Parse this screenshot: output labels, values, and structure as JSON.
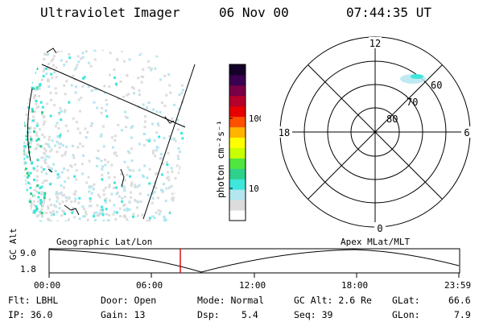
{
  "header": {
    "instrument": "Ultraviolet Imager",
    "date": "06 Nov 00",
    "time": "07:44:35 UT"
  },
  "colorbar": {
    "unit_label": "photon cm⁻²s⁻¹",
    "tick_100": "100",
    "tick_10": "10",
    "colors": [
      "#ffffff",
      "#dcdcdc",
      "#b4e6f0",
      "#3ee6dc",
      "#2fd08a",
      "#50e640",
      "#c8ff00",
      "#ffff00",
      "#ffb400",
      "#ff5000",
      "#e60000",
      "#b4002a",
      "#780046",
      "#3c0050",
      "#140028"
    ]
  },
  "polar": {
    "mlt_12": "12",
    "mlt_18": "18",
    "mlt_6": "6",
    "mlt_0": "0",
    "lat_60": "60",
    "lat_70": "70",
    "lat_80": "80"
  },
  "timeline": {
    "left_label": "Geographic Lat/Lon",
    "right_label": "Apex MLat/MLT",
    "axis_label": "GC Alt",
    "y_top": "9.0",
    "y_bottom": "1.8",
    "ticks": [
      "00:00",
      "06:00",
      "12:00",
      "18:00",
      "23:59"
    ]
  },
  "info": {
    "flt": "Flt: LBHL",
    "door": "Door: Open",
    "mode": "Mode: Normal",
    "gcalt": "GC Alt: 2.6 Re",
    "glat_label": "GLat:",
    "glat_value": "66.6",
    "ip": "IP: 36.0",
    "gain": "Gain: 13",
    "dsp_label": "Dsp:",
    "dsp_value": "5.4",
    "seq": "Seq: 39",
    "glon_label": "GLon:",
    "glon_value": "7.9"
  }
}
